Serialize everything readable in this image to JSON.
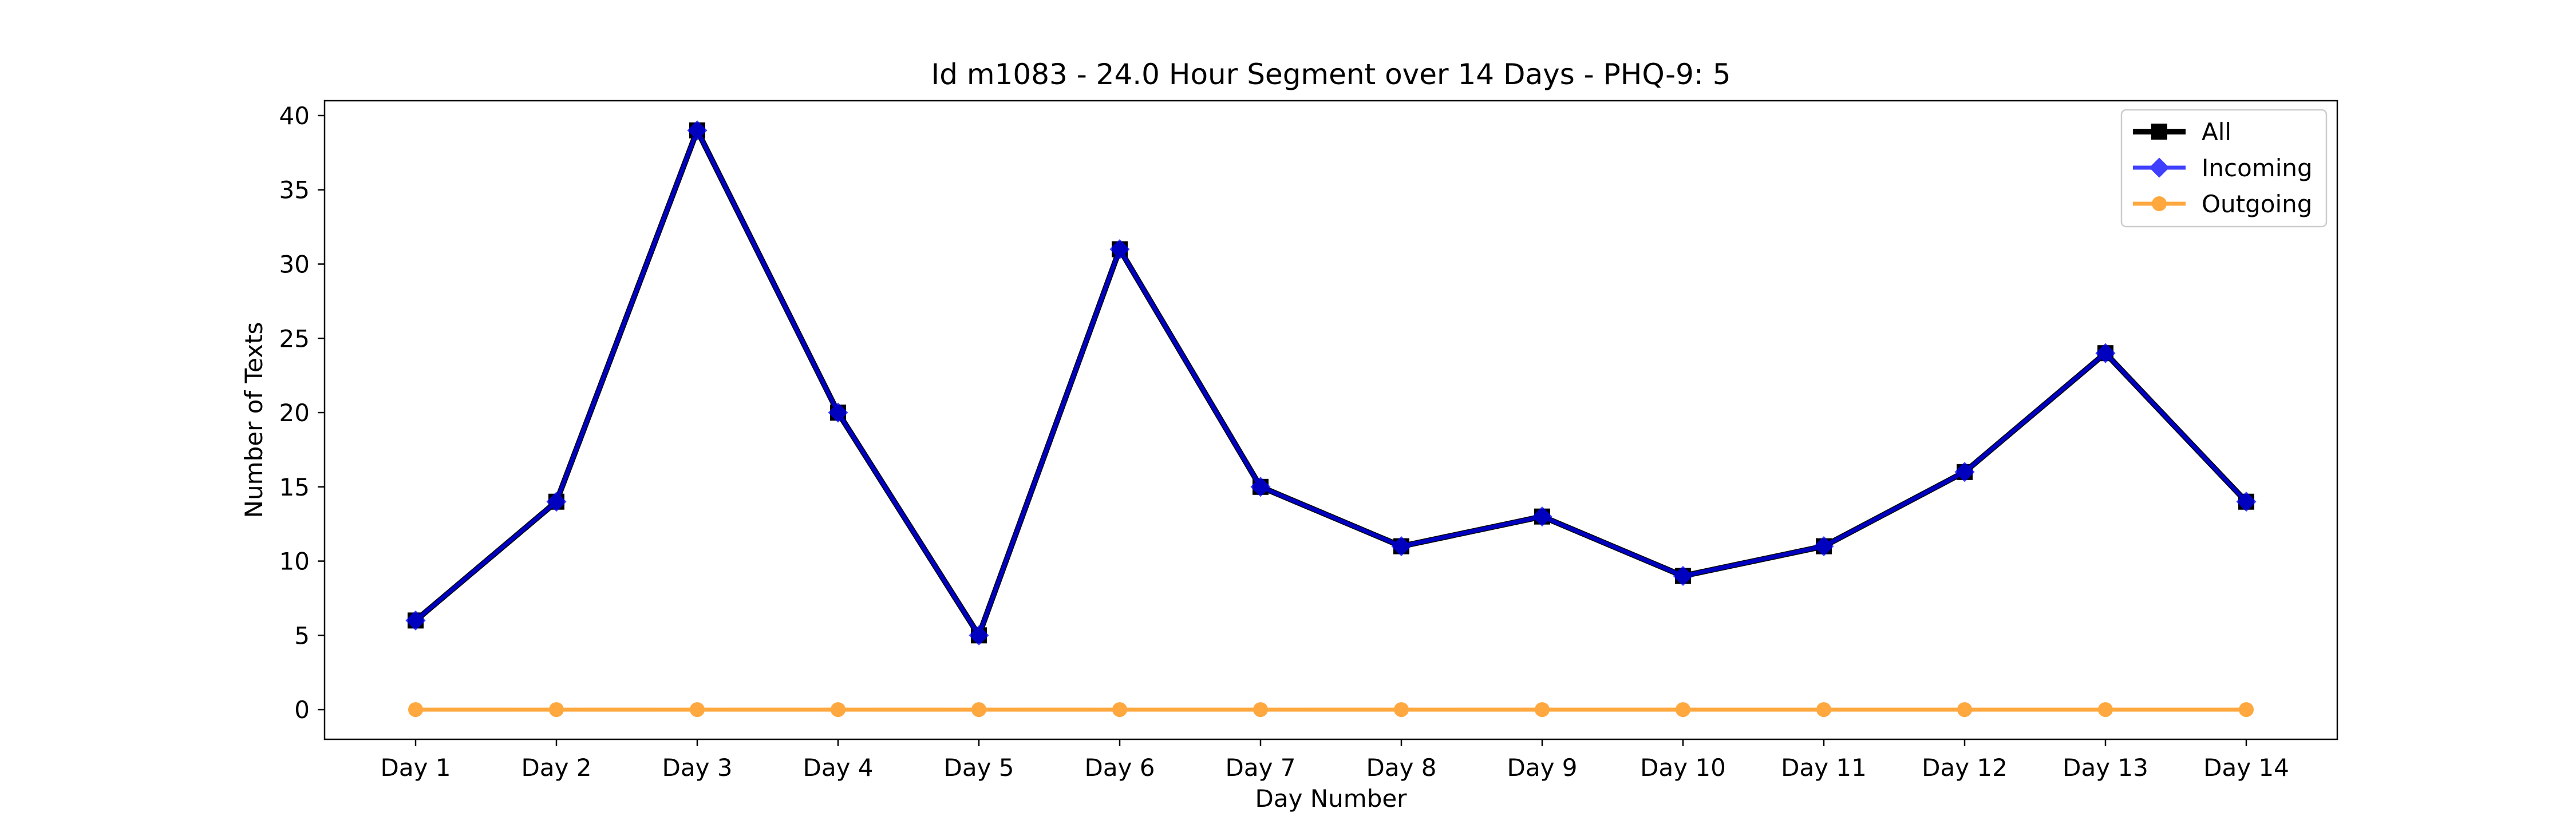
{
  "chart_data": {
    "type": "line",
    "title": "Id m1083 - 24.0 Hour Segment over 14 Days - PHQ-9: 5",
    "xlabel": "Day Number",
    "ylabel": "Number of Texts",
    "categories": [
      "Day 1",
      "Day 2",
      "Day 3",
      "Day 4",
      "Day 5",
      "Day 6",
      "Day 7",
      "Day 8",
      "Day 9",
      "Day 10",
      "Day 11",
      "Day 12",
      "Day 13",
      "Day 14"
    ],
    "ylim": [
      -2,
      41
    ],
    "yticks": [
      0,
      5,
      10,
      15,
      20,
      25,
      30,
      35,
      40
    ],
    "grid": false,
    "legend_position": "top-right",
    "series": [
      {
        "name": "All",
        "color": "#000000",
        "marker": "square",
        "values": [
          6,
          14,
          39,
          20,
          5,
          31,
          15,
          11,
          13,
          9,
          11,
          16,
          24,
          14
        ]
      },
      {
        "name": "Incoming",
        "color": "#0000ff",
        "marker": "diamond",
        "values": [
          6,
          14,
          39,
          20,
          5,
          31,
          15,
          11,
          13,
          9,
          11,
          16,
          24,
          14
        ]
      },
      {
        "name": "Outgoing",
        "color": "#ff8c00",
        "marker": "circle",
        "values": [
          0,
          0,
          0,
          0,
          0,
          0,
          0,
          0,
          0,
          0,
          0,
          0,
          0,
          0
        ]
      }
    ]
  }
}
